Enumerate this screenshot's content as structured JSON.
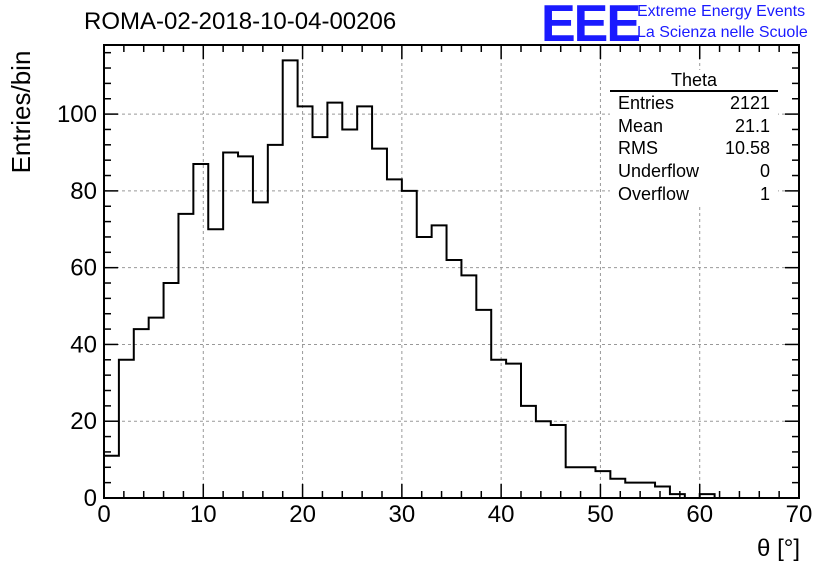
{
  "title": "ROMA-02-2018-10-04-00206",
  "logo": {
    "text": "EEE",
    "line1": "Extreme Energy Events",
    "line2": "La Scienza nelle Scuole",
    "color": "#1a1aff"
  },
  "stats": {
    "name": "Theta",
    "rows": [
      {
        "label": "Entries",
        "value": "2121"
      },
      {
        "label": "Mean",
        "value": "21.1"
      },
      {
        "label": "RMS",
        "value": "10.58"
      },
      {
        "label": "Underflow",
        "value": "0"
      },
      {
        "label": "Overflow",
        "value": "1"
      }
    ]
  },
  "chart_data": {
    "type": "histogram",
    "xlabel": "θ [°]",
    "ylabel": "Entries/bin",
    "xlim": [
      0,
      70
    ],
    "ylim": [
      0,
      118
    ],
    "xticks": [
      0,
      10,
      20,
      30,
      40,
      50,
      60,
      70
    ],
    "yticks": [
      0,
      20,
      40,
      60,
      80,
      100
    ],
    "grid": true,
    "bin_width": 1.5,
    "bin_start": 0,
    "values": [
      11,
      36,
      44,
      47,
      56,
      74,
      87,
      70,
      90,
      89,
      77,
      92,
      114,
      102,
      94,
      103,
      96,
      102,
      91,
      83,
      80,
      68,
      71,
      62,
      58,
      49,
      36,
      35,
      24,
      20,
      19,
      8,
      8,
      7,
      5,
      4,
      4,
      3,
      1,
      0,
      1,
      0,
      0,
      0,
      0,
      0,
      0
    ]
  }
}
